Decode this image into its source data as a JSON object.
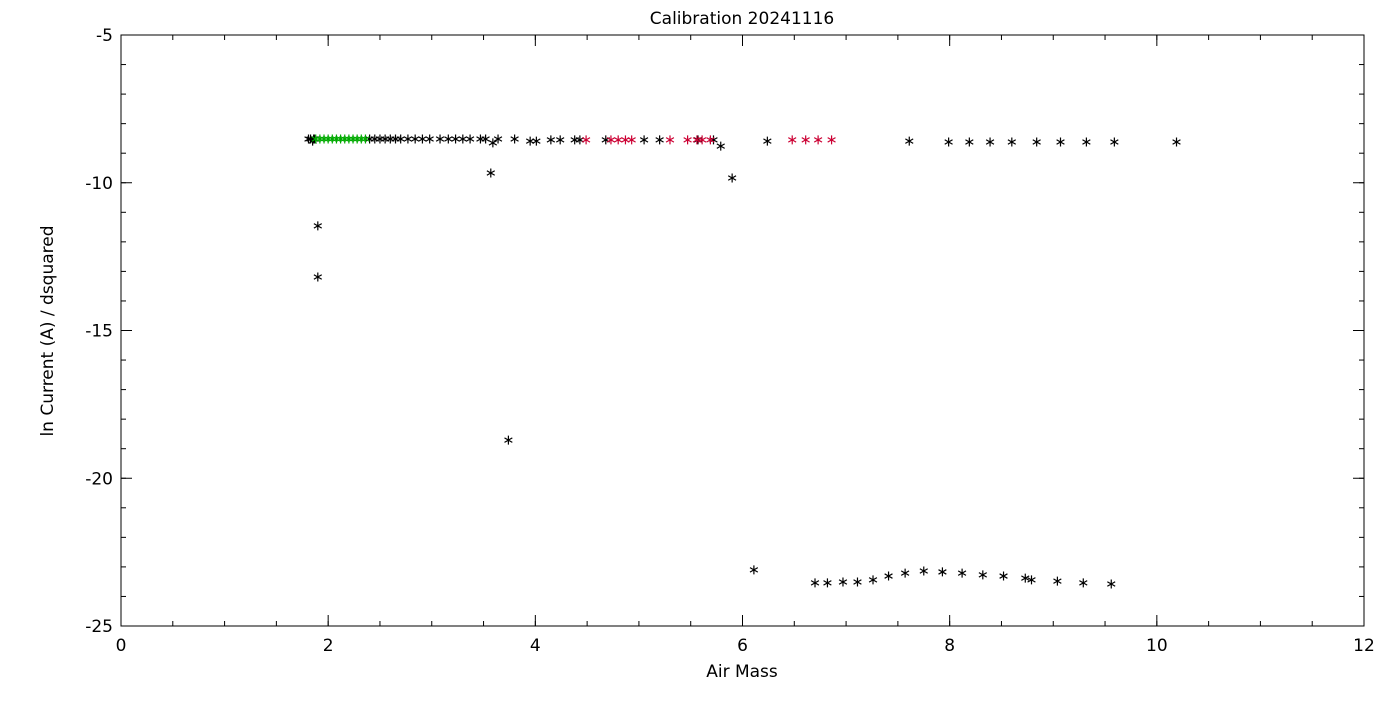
{
  "chart_data": {
    "type": "scatter",
    "title": "Calibration 20241116",
    "x_label": "Air Mass",
    "y_label": "ln Current (A) / dsquared",
    "xlim": [
      0,
      12
    ],
    "xticks": [
      0,
      2,
      4,
      6,
      8,
      10,
      12
    ],
    "ylim": [
      -25,
      -5
    ],
    "yticks": [
      -25,
      -20,
      -15,
      -10,
      -5
    ],
    "x_minor_step": 0.5,
    "y_minor_step": 1,
    "marker": "asterisk",
    "series": [
      {
        "color": "#000000",
        "x": [
          1.81,
          1.83,
          1.85,
          1.86,
          1.87,
          1.9,
          1.9,
          2.4,
          2.45,
          2.5,
          2.55,
          2.6,
          2.65,
          2.7,
          2.77,
          2.84,
          2.91,
          2.98,
          3.08,
          3.16,
          3.23,
          3.3,
          3.37,
          3.47,
          3.52,
          3.57,
          3.59,
          3.64,
          3.74,
          3.8,
          3.95,
          4.01,
          4.15,
          4.24,
          4.38,
          4.43,
          4.68,
          5.05,
          5.2,
          5.57,
          5.72,
          5.79,
          5.9,
          6.11,
          6.24,
          6.7,
          6.82,
          6.97,
          7.11,
          7.26,
          7.41,
          7.57,
          7.61,
          7.75,
          7.93,
          7.99,
          8.12,
          8.19,
          8.32,
          8.39,
          8.52,
          8.6,
          8.73,
          8.79,
          8.84,
          9.04,
          9.07,
          9.29,
          9.32,
          9.56,
          9.59,
          10.19
        ],
        "values": [
          -8.52,
          -8.52,
          -8.59,
          -8.52,
          -8.52,
          -11.46,
          -13.19,
          -8.52,
          -8.52,
          -8.52,
          -8.52,
          -8.52,
          -8.52,
          -8.52,
          -8.52,
          -8.52,
          -8.52,
          -8.52,
          -8.52,
          -8.52,
          -8.52,
          -8.52,
          -8.52,
          -8.52,
          -8.52,
          -9.67,
          -8.65,
          -8.52,
          -18.71,
          -8.52,
          -8.59,
          -8.59,
          -8.55,
          -8.55,
          -8.55,
          -8.55,
          -8.55,
          -8.55,
          -8.55,
          -8.55,
          -8.55,
          -8.76,
          -9.84,
          -23.1,
          -8.59,
          -23.54,
          -23.54,
          -23.51,
          -23.51,
          -23.44,
          -23.31,
          -23.21,
          -8.59,
          -23.14,
          -23.17,
          -8.62,
          -23.21,
          -8.62,
          -23.27,
          -8.62,
          -23.31,
          -8.62,
          -23.38,
          -23.44,
          -8.62,
          -23.48,
          -8.62,
          -23.54,
          -8.62,
          -23.58,
          -8.62,
          -8.62
        ]
      },
      {
        "color": "#cc0033",
        "x": [
          4.49,
          4.73,
          4.8,
          4.87,
          4.93,
          5.3,
          5.47,
          5.56,
          5.61,
          5.69,
          6.48,
          6.61,
          6.73,
          6.86
        ],
        "values": [
          -8.55,
          -8.55,
          -8.55,
          -8.55,
          -8.55,
          -8.55,
          -8.55,
          -8.55,
          -8.55,
          -8.55,
          -8.55,
          -8.55,
          -8.55,
          -8.55
        ]
      },
      {
        "color": "#00aa00",
        "x": [
          1.88,
          1.92,
          1.96,
          2.0,
          2.04,
          2.08,
          2.12,
          2.16,
          2.2,
          2.24,
          2.28,
          2.32,
          2.36
        ],
        "values": [
          -8.52,
          -8.52,
          -8.52,
          -8.52,
          -8.52,
          -8.52,
          -8.52,
          -8.52,
          -8.52,
          -8.52,
          -8.52,
          -8.52,
          -8.52
        ]
      }
    ]
  }
}
